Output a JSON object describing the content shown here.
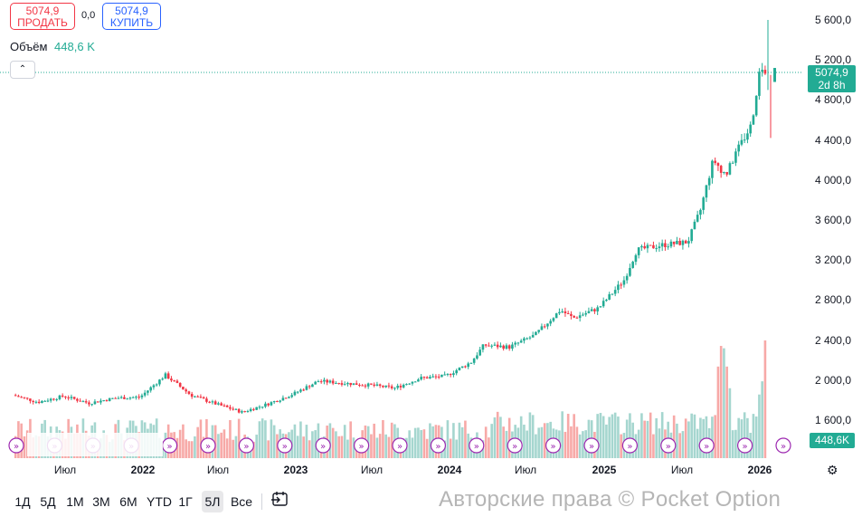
{
  "order_panel": {
    "sell_price": "5074,9",
    "sell_label": "ПРОДАТЬ",
    "spread": "0,0",
    "buy_price": "5074,9",
    "buy_label": "КУПИТЬ"
  },
  "volume_indicator": {
    "title": "Объём",
    "value": "448,6 K"
  },
  "collapse_icon": "chevron-up-icon",
  "last_price": {
    "value": "5074,9",
    "countdown": "2d 8h"
  },
  "volume_tag": "448,6K",
  "price_axis": [
    "5 600,0",
    "5 200,0",
    "4 800,0",
    "4 400,0",
    "4 000,0",
    "3 600,0",
    "3 200,0",
    "2 800,0",
    "2 400,0",
    "2 000,0",
    "1 600,0"
  ],
  "time_axis": [
    {
      "label": "Июл",
      "bold": false
    },
    {
      "label": "2022",
      "bold": true
    },
    {
      "label": "Июл",
      "bold": false
    },
    {
      "label": "2023",
      "bold": true
    },
    {
      "label": "Июл",
      "bold": false
    },
    {
      "label": "2024",
      "bold": true
    },
    {
      "label": "Июл",
      "bold": false
    },
    {
      "label": "2025",
      "bold": true
    },
    {
      "label": "Июл",
      "bold": false
    },
    {
      "label": "2026",
      "bold": true
    }
  ],
  "range_buttons": [
    {
      "label": "1Д",
      "active": false
    },
    {
      "label": "5Д",
      "active": false
    },
    {
      "label": "1М",
      "active": false
    },
    {
      "label": "3М",
      "active": false
    },
    {
      "label": "6М",
      "active": false
    },
    {
      "label": "YTD",
      "active": false
    },
    {
      "label": "1Г",
      "active": false
    },
    {
      "label": "5Л",
      "active": true
    },
    {
      "label": "Все",
      "active": false
    }
  ],
  "goto_icon": "go-to-date-icon",
  "settings_icon": "gear-icon",
  "watermark": "Авторские права © Pocket Option",
  "colors": {
    "up": "#22ab94",
    "down": "#f23645",
    "volume_up": "#a5d6cf",
    "volume_down": "#f7a9a7",
    "event_marker": "#9c27b0"
  },
  "chart_data": {
    "type": "candlestick",
    "timeframe": "weekly",
    "x_range": [
      "2021-03",
      "2026-02"
    ],
    "y_range": [
      1400,
      5800
    ],
    "price_path": [
      [
        "2021-03",
        1850
      ],
      [
        "2021-05",
        1780
      ],
      [
        "2021-07",
        1840
      ],
      [
        "2021-09",
        1770
      ],
      [
        "2021-11",
        1820
      ],
      [
        "2022-01",
        1830
      ],
      [
        "2022-03",
        2050
      ],
      [
        "2022-05",
        1850
      ],
      [
        "2022-07",
        1760
      ],
      [
        "2022-09",
        1680
      ],
      [
        "2022-11",
        1760
      ],
      [
        "2023-01",
        1860
      ],
      [
        "2023-03",
        1990
      ],
      [
        "2023-05",
        1970
      ],
      [
        "2023-07",
        1950
      ],
      [
        "2023-09",
        1920
      ],
      [
        "2023-11",
        2020
      ],
      [
        "2024-01",
        2040
      ],
      [
        "2024-03",
        2180
      ],
      [
        "2024-04",
        2350
      ],
      [
        "2024-06",
        2330
      ],
      [
        "2024-08",
        2450
      ],
      [
        "2024-10",
        2700
      ],
      [
        "2024-11",
        2620
      ],
      [
        "2025-01",
        2720
      ],
      [
        "2025-03",
        3000
      ],
      [
        "2025-04",
        3300
      ],
      [
        "2025-06",
        3350
      ],
      [
        "2025-08",
        3380
      ],
      [
        "2025-09",
        3700
      ],
      [
        "2025-10",
        4200
      ],
      [
        "2025-11",
        4050
      ],
      [
        "2025-12",
        4320
      ],
      [
        "2026-01",
        4550
      ],
      [
        "2026-01-20",
        5075
      ],
      [
        "2026-02",
        5074.9
      ]
    ],
    "last_price": 5074.9,
    "volume_last": "448,6K"
  }
}
